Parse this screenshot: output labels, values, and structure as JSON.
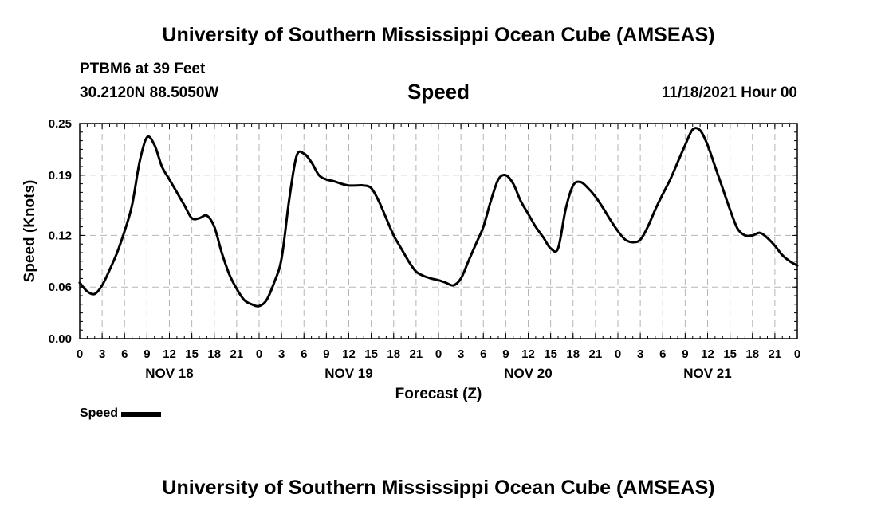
{
  "header": {
    "title": "University of Southern Mississippi Ocean Cube (AMSEAS)",
    "station": "PTBM6 at 39 Feet",
    "coords": "30.2120N  88.5050W",
    "datetime": "11/18/2021 Hour 00"
  },
  "footer": {
    "title": "University of Southern Mississippi Ocean Cube (AMSEAS)"
  },
  "chart_data": {
    "type": "line",
    "title": "Speed",
    "xlabel": "Forecast (Z)",
    "ylabel": "Speed (Knots)",
    "xlim": [
      0,
      96
    ],
    "ylim": [
      0,
      0.25
    ],
    "yticks": [
      0.0,
      0.06,
      0.12,
      0.19,
      0.25
    ],
    "ytick_labels": [
      "0.00",
      "0.06",
      "0.12",
      "0.19",
      "0.25"
    ],
    "xtick_hours": [
      0,
      3,
      6,
      9,
      12,
      15,
      18,
      21,
      24,
      27,
      30,
      33,
      36,
      39,
      42,
      45,
      48,
      51,
      54,
      57,
      60,
      63,
      66,
      69,
      72,
      75,
      78,
      81,
      84,
      87,
      90,
      93,
      96
    ],
    "xtick_labels": [
      "0",
      "3",
      "6",
      "9",
      "12",
      "15",
      "18",
      "21",
      "0",
      "3",
      "6",
      "9",
      "12",
      "15",
      "18",
      "21",
      "0",
      "3",
      "6",
      "9",
      "12",
      "15",
      "18",
      "21",
      "0",
      "3",
      "6",
      "9",
      "12",
      "15",
      "18",
      "21",
      "0"
    ],
    "day_labels": [
      {
        "hour": 12,
        "label": "NOV 18"
      },
      {
        "hour": 36,
        "label": "NOV 19"
      },
      {
        "hour": 60,
        "label": "NOV 20"
      },
      {
        "hour": 84,
        "label": "NOV 21"
      }
    ],
    "grid": true,
    "legend": "bottom-left",
    "series": [
      {
        "name": "Speed",
        "color": "#000000",
        "x": [
          0,
          1,
          2,
          3,
          4,
          5,
          6,
          7,
          8,
          9,
          10,
          11,
          12,
          13,
          14,
          15,
          16,
          17,
          18,
          19,
          20,
          21,
          22,
          23,
          24,
          25,
          26,
          27,
          28,
          29,
          30,
          31,
          32,
          33,
          34,
          35,
          36,
          37,
          38,
          39,
          40,
          41,
          42,
          43,
          44,
          45,
          46,
          47,
          48,
          49,
          50,
          51,
          52,
          53,
          54,
          55,
          56,
          57,
          58,
          59,
          60,
          61,
          62,
          63,
          64,
          65,
          66,
          67,
          68,
          69,
          70,
          71,
          72,
          73,
          74,
          75,
          76,
          77,
          78,
          79,
          80,
          81,
          82,
          83,
          84,
          85,
          86,
          87,
          88,
          89,
          90,
          91,
          92,
          93,
          94,
          95,
          96
        ],
        "values": [
          0.065,
          0.055,
          0.052,
          0.062,
          0.08,
          0.1,
          0.125,
          0.155,
          0.205,
          0.234,
          0.225,
          0.2,
          0.185,
          0.17,
          0.155,
          0.14,
          0.14,
          0.143,
          0.13,
          0.1,
          0.075,
          0.058,
          0.045,
          0.04,
          0.038,
          0.045,
          0.065,
          0.093,
          0.16,
          0.212,
          0.215,
          0.205,
          0.19,
          0.185,
          0.183,
          0.18,
          0.178,
          0.178,
          0.178,
          0.175,
          0.16,
          0.14,
          0.12,
          0.105,
          0.09,
          0.078,
          0.073,
          0.07,
          0.068,
          0.065,
          0.062,
          0.07,
          0.09,
          0.11,
          0.13,
          0.16,
          0.185,
          0.19,
          0.18,
          0.16,
          0.145,
          0.13,
          0.118,
          0.105,
          0.105,
          0.15,
          0.178,
          0.182,
          0.175,
          0.165,
          0.152,
          0.138,
          0.125,
          0.115,
          0.112,
          0.115,
          0.13,
          0.15,
          0.168,
          0.185,
          0.205,
          0.225,
          0.243,
          0.242,
          0.225,
          0.2,
          0.175,
          0.15,
          0.128,
          0.12,
          0.12,
          0.123,
          0.117,
          0.108,
          0.097,
          0.09,
          0.085
        ]
      }
    ]
  }
}
